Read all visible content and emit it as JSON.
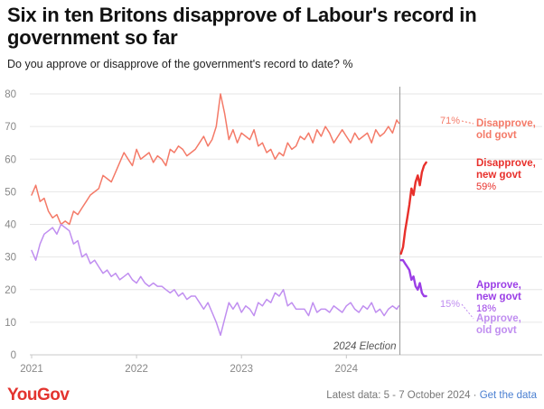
{
  "header": {
    "title": "Six in ten Britons disapprove of Labour's record in government so far",
    "subtitle": "Do you approve or disapprove of the government's record to date? %"
  },
  "footer": {
    "logo": "YouGov",
    "latest_data": "Latest data: 5 - 7 October 2024 · ",
    "get_data_link": "Get the data"
  },
  "colors": {
    "disapprove_old": "#f47a68",
    "disapprove_new": "#e8302b",
    "approve_old": "#c08ef0",
    "approve_new": "#9b3ee6",
    "grid": "#e6e6e6",
    "axis_text": "#888888"
  },
  "chart_data": {
    "type": "line",
    "title": "Six in ten Britons disapprove of Labour's record in government so far",
    "ylim": [
      0,
      80
    ],
    "xlim": [
      2021.0,
      2024.85
    ],
    "y_ticks": [
      0,
      10,
      20,
      30,
      40,
      50,
      60,
      70,
      80
    ],
    "x_ticks": [
      {
        "value": 2021,
        "label": "2021"
      },
      {
        "value": 2022,
        "label": "2022"
      },
      {
        "value": 2023,
        "label": "2023"
      },
      {
        "value": 2024,
        "label": "2024"
      }
    ],
    "grid": true,
    "annotation": {
      "x": 2024.51,
      "label": "2024 Election"
    },
    "series": [
      {
        "name": "Disapprove, old govt",
        "label_lines": [
          "Disapprove,",
          "old govt"
        ],
        "end_value_label": "71%",
        "color_key": "disapprove_old",
        "x": [
          2021.0,
          2021.04,
          2021.08,
          2021.12,
          2021.16,
          2021.2,
          2021.24,
          2021.28,
          2021.32,
          2021.36,
          2021.4,
          2021.44,
          2021.48,
          2021.52,
          2021.56,
          2021.6,
          2021.64,
          2021.68,
          2021.72,
          2021.76,
          2021.8,
          2021.84,
          2021.88,
          2021.92,
          2021.96,
          2022.0,
          2022.04,
          2022.08,
          2022.12,
          2022.16,
          2022.2,
          2022.24,
          2022.28,
          2022.32,
          2022.36,
          2022.4,
          2022.44,
          2022.48,
          2022.52,
          2022.56,
          2022.6,
          2022.64,
          2022.68,
          2022.72,
          2022.76,
          2022.8,
          2022.84,
          2022.88,
          2022.92,
          2022.96,
          2023.0,
          2023.04,
          2023.08,
          2023.12,
          2023.16,
          2023.2,
          2023.24,
          2023.28,
          2023.32,
          2023.36,
          2023.4,
          2023.44,
          2023.48,
          2023.52,
          2023.56,
          2023.6,
          2023.64,
          2023.68,
          2023.72,
          2023.76,
          2023.8,
          2023.84,
          2023.88,
          2023.92,
          2023.96,
          2024.0,
          2024.04,
          2024.08,
          2024.12,
          2024.16,
          2024.2,
          2024.24,
          2024.28,
          2024.32,
          2024.36,
          2024.4,
          2024.44,
          2024.48,
          2024.5
        ],
        "values": [
          49,
          52,
          47,
          48,
          44,
          42,
          43,
          40,
          41,
          40,
          44,
          43,
          45,
          47,
          49,
          50,
          51,
          55,
          54,
          53,
          56,
          59,
          62,
          60,
          58,
          63,
          60,
          61,
          62,
          59,
          61,
          60,
          58,
          63,
          62,
          64,
          63,
          61,
          62,
          63,
          65,
          67,
          64,
          66,
          70,
          80,
          74,
          66,
          69,
          65,
          68,
          67,
          66,
          69,
          64,
          65,
          62,
          63,
          60,
          62,
          61,
          65,
          63,
          64,
          67,
          66,
          68,
          65,
          69,
          67,
          70,
          68,
          65,
          67,
          69,
          67,
          65,
          68,
          66,
          67,
          68,
          65,
          69,
          67,
          68,
          70,
          68,
          72,
          71
        ]
      },
      {
        "name": "Approve, old govt",
        "label_lines": [
          "Approve,",
          "old govt"
        ],
        "end_value_label": "15%",
        "color_key": "approve_old",
        "x": [
          2021.0,
          2021.04,
          2021.08,
          2021.12,
          2021.16,
          2021.2,
          2021.24,
          2021.28,
          2021.32,
          2021.36,
          2021.4,
          2021.44,
          2021.48,
          2021.52,
          2021.56,
          2021.6,
          2021.64,
          2021.68,
          2021.72,
          2021.76,
          2021.8,
          2021.84,
          2021.88,
          2021.92,
          2021.96,
          2022.0,
          2022.04,
          2022.08,
          2022.12,
          2022.16,
          2022.2,
          2022.24,
          2022.28,
          2022.32,
          2022.36,
          2022.4,
          2022.44,
          2022.48,
          2022.52,
          2022.56,
          2022.6,
          2022.64,
          2022.68,
          2022.72,
          2022.76,
          2022.8,
          2022.84,
          2022.88,
          2022.92,
          2022.96,
          2023.0,
          2023.04,
          2023.08,
          2023.12,
          2023.16,
          2023.2,
          2023.24,
          2023.28,
          2023.32,
          2023.36,
          2023.4,
          2023.44,
          2023.48,
          2023.52,
          2023.56,
          2023.6,
          2023.64,
          2023.68,
          2023.72,
          2023.76,
          2023.8,
          2023.84,
          2023.88,
          2023.92,
          2023.96,
          2024.0,
          2024.04,
          2024.08,
          2024.12,
          2024.16,
          2024.2,
          2024.24,
          2024.28,
          2024.32,
          2024.36,
          2024.4,
          2024.44,
          2024.48,
          2024.5
        ],
        "values": [
          32,
          29,
          34,
          37,
          38,
          39,
          37,
          40,
          39,
          38,
          34,
          35,
          30,
          31,
          28,
          29,
          27,
          25,
          26,
          24,
          25,
          23,
          24,
          25,
          23,
          22,
          24,
          22,
          21,
          22,
          21,
          21,
          20,
          19,
          20,
          18,
          19,
          17,
          18,
          18,
          16,
          14,
          16,
          13,
          10,
          6,
          11,
          16,
          14,
          16,
          13,
          15,
          14,
          12,
          16,
          15,
          17,
          16,
          19,
          18,
          20,
          15,
          16,
          14,
          14,
          14,
          12,
          16,
          13,
          14,
          14,
          13,
          15,
          14,
          13,
          15,
          16,
          14,
          13,
          15,
          14,
          16,
          13,
          14,
          12,
          14,
          15,
          14,
          15
        ]
      },
      {
        "name": "Disapprove, new govt",
        "label_lines": [
          "Disapprove,",
          "new govt"
        ],
        "end_value_label": "59%",
        "color_key": "disapprove_new",
        "x": [
          2024.52,
          2024.54,
          2024.56,
          2024.58,
          2024.6,
          2024.62,
          2024.64,
          2024.66,
          2024.68,
          2024.7,
          2024.72,
          2024.74,
          2024.76
        ],
        "values": [
          31,
          33,
          38,
          42,
          46,
          51,
          49,
          53,
          55,
          52,
          56,
          58,
          59
        ]
      },
      {
        "name": "Approve, new govt",
        "label_lines": [
          "Approve,",
          "new govt"
        ],
        "end_value_label": "18%",
        "color_key": "approve_new",
        "x": [
          2024.52,
          2024.54,
          2024.56,
          2024.58,
          2024.6,
          2024.62,
          2024.64,
          2024.66,
          2024.68,
          2024.7,
          2024.72,
          2024.74,
          2024.76
        ],
        "values": [
          29,
          29,
          28,
          27,
          26,
          23,
          24,
          21,
          20,
          22,
          19,
          18,
          18
        ]
      }
    ]
  }
}
